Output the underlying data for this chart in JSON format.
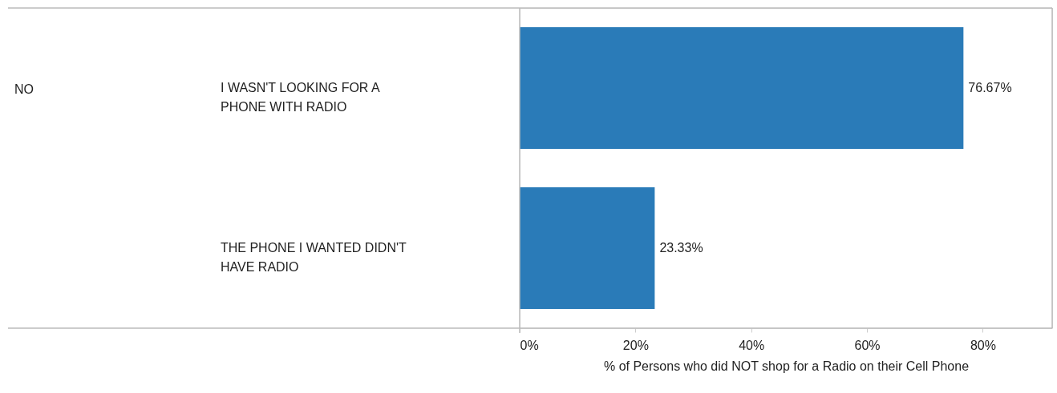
{
  "chart_data": {
    "type": "bar",
    "orientation": "horizontal",
    "categories": [
      "I WASN'T LOOKING FOR A\nPHONE WITH  RADIO",
      "THE PHONE I WANTED DIDN'T\nHAVE RADIO"
    ],
    "values": [
      76.67,
      23.33
    ],
    "color": "#2a7bb8",
    "value_labels": [
      "76.67%",
      "23.33%"
    ],
    "xlabel": "% of Persons who did NOT shop for a Radio on their Cell Phone",
    "xlim": [
      0,
      92
    ],
    "xticks": [
      {
        "value": 0,
        "label": "0%"
      },
      {
        "value": 20,
        "label": "20%"
      },
      {
        "value": 40,
        "label": "40%"
      },
      {
        "value": 60,
        "label": "60%"
      },
      {
        "value": 80,
        "label": "80%"
      }
    ],
    "annotations": [
      "NO"
    ],
    "grid": false
  }
}
